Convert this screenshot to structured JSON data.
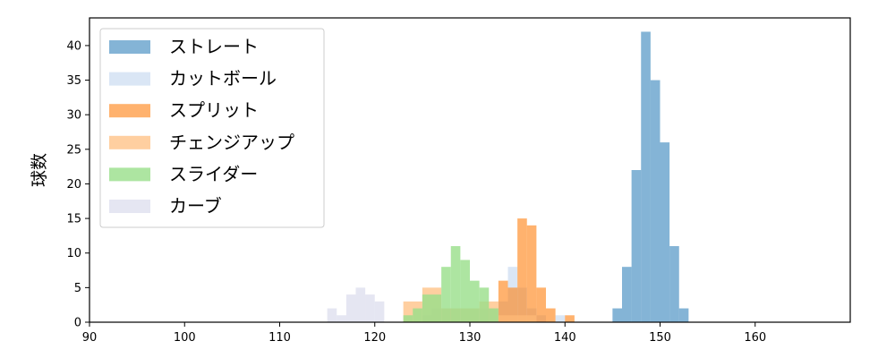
{
  "chart_data": {
    "type": "bar",
    "xlabel": "",
    "ylabel": "球数",
    "xlim": [
      90,
      170
    ],
    "ylim": [
      0,
      44
    ],
    "xticks": [
      90,
      100,
      110,
      120,
      130,
      140,
      150,
      160
    ],
    "yticks": [
      0,
      5,
      10,
      15,
      20,
      25,
      30,
      35,
      40
    ],
    "grid": false,
    "legend_position": "top-left",
    "series": [
      {
        "name": "ストレート",
        "color": "#1f77b4",
        "opacity": 0.55,
        "bin_width": 1.0,
        "bins": [
          [
            145,
            2
          ],
          [
            146,
            8
          ],
          [
            147,
            22
          ],
          [
            148,
            42
          ],
          [
            149,
            35
          ],
          [
            150,
            26
          ],
          [
            151,
            11
          ],
          [
            152,
            2
          ]
        ]
      },
      {
        "name": "カットボール",
        "color": "#aec7e8",
        "opacity": 0.45,
        "bin_width": 1.0,
        "bins": [
          [
            125,
            1
          ],
          [
            126,
            2
          ],
          [
            127,
            2
          ],
          [
            128,
            2
          ],
          [
            129,
            2
          ],
          [
            130,
            2
          ],
          [
            131,
            2
          ],
          [
            132,
            2
          ],
          [
            133,
            3
          ],
          [
            134,
            8
          ],
          [
            135,
            5
          ],
          [
            136,
            2
          ],
          [
            137,
            1
          ],
          [
            139,
            1
          ]
        ]
      },
      {
        "name": "スプリット",
        "color": "#ff7f0e",
        "opacity": 0.6,
        "bin_width": 1.0,
        "bins": [
          [
            133,
            6
          ],
          [
            134,
            5
          ],
          [
            135,
            15
          ],
          [
            136,
            14
          ],
          [
            137,
            5
          ],
          [
            138,
            2
          ],
          [
            140,
            1
          ]
        ]
      },
      {
        "name": "チェンジアップ",
        "color": "#ffbb78",
        "opacity": 0.7,
        "bin_width": 2.0,
        "bins": [
          [
            123,
            3
          ],
          [
            125,
            5
          ],
          [
            127,
            2
          ],
          [
            129,
            2
          ],
          [
            131,
            3
          ],
          [
            133,
            1
          ],
          [
            135,
            1
          ]
        ]
      },
      {
        "name": "スライダー",
        "color": "#98df8a",
        "opacity": 0.8,
        "bin_width": 1.0,
        "bins": [
          [
            123,
            1
          ],
          [
            124,
            2
          ],
          [
            125,
            4
          ],
          [
            126,
            4
          ],
          [
            127,
            8
          ],
          [
            128,
            11
          ],
          [
            129,
            9
          ],
          [
            130,
            6
          ],
          [
            131,
            5
          ],
          [
            132,
            2
          ]
        ]
      },
      {
        "name": "カーブ",
        "color": "#c5c8e3",
        "opacity": 0.45,
        "bin_width": 1.0,
        "bins": [
          [
            115,
            2
          ],
          [
            116,
            1
          ],
          [
            117,
            4
          ],
          [
            118,
            5
          ],
          [
            119,
            4
          ],
          [
            120,
            3
          ]
        ]
      }
    ]
  }
}
